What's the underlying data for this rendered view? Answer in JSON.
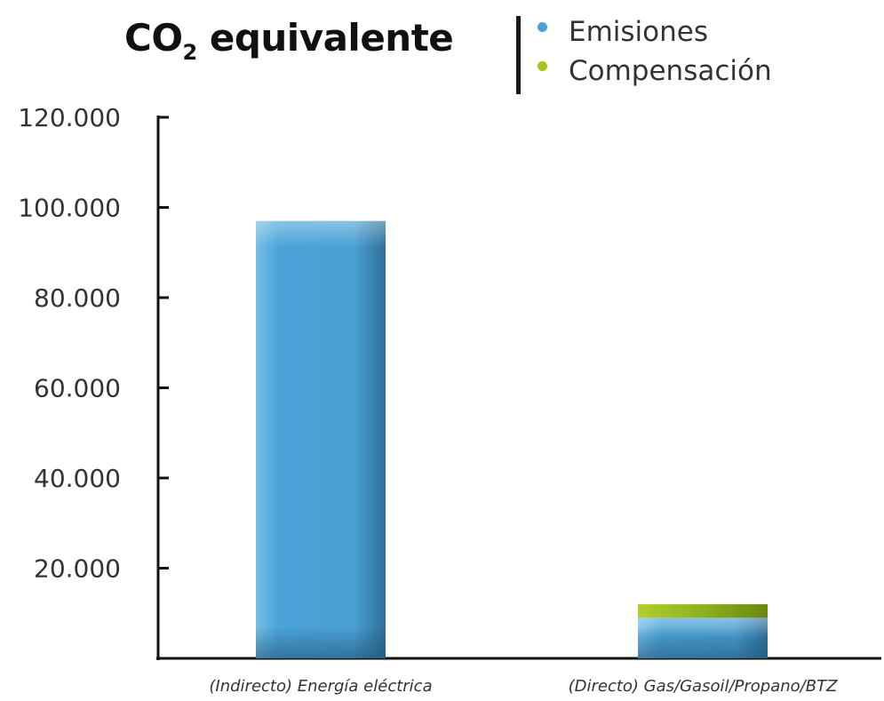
{
  "chart_data": {
    "type": "bar",
    "stacked": true,
    "title_main": "CO",
    "title_sub": "2",
    "title_rest": " equivalente",
    "categories": [
      "(Indirecto) Energía eléctrica",
      "(Directo) Gas/Gasoil/Propano/BTZ"
    ],
    "series": [
      {
        "name": "Emisiones",
        "color": "#4aa3d8",
        "values": [
          97000,
          9000
        ]
      },
      {
        "name": "Compensación",
        "color": "#8fb21e",
        "values": [
          0,
          3000
        ]
      }
    ],
    "yticks": [
      "20.000",
      "40.000",
      "60.000",
      "80.000",
      "100.000",
      "120.000"
    ],
    "ytick_values": [
      20000,
      40000,
      60000,
      80000,
      100000,
      120000
    ],
    "ylim": [
      0,
      120000
    ],
    "legend_position": "top-right",
    "grid": false
  }
}
